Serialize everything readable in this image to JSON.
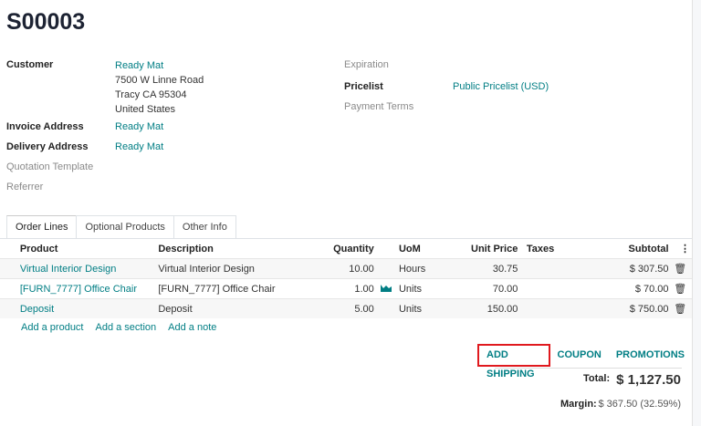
{
  "title": "S00003",
  "customer": {
    "label": "Customer",
    "name": "Ready Mat",
    "address": [
      "7500 W Linne Road",
      "Tracy CA 95304",
      "United States"
    ]
  },
  "invoice_address": {
    "label": "Invoice Address",
    "value": "Ready Mat"
  },
  "delivery_address": {
    "label": "Delivery Address",
    "value": "Ready Mat"
  },
  "quotation_template": {
    "label": "Quotation Template"
  },
  "referrer": {
    "label": "Referrer"
  },
  "expiration": {
    "label": "Expiration"
  },
  "pricelist": {
    "label": "Pricelist",
    "value": "Public Pricelist (USD)"
  },
  "payment_terms": {
    "label": "Payment Terms"
  },
  "tabs": [
    "Order Lines",
    "Optional Products",
    "Other Info"
  ],
  "columns": [
    "Product",
    "Description",
    "Quantity",
    "UoM",
    "Unit Price",
    "Taxes",
    "Subtotal"
  ],
  "rows": [
    {
      "product": "Virtual Interior Design",
      "description": "Virtual Interior Design",
      "quantity": "10.00",
      "uom": "Hours",
      "unit_price": "30.75",
      "taxes": "",
      "subtotal": "$ 307.50"
    },
    {
      "product": "[FURN_7777] Office Chair",
      "description": "[FURN_7777] Office Chair",
      "quantity": "1.00",
      "uom": "Units",
      "unit_price": "70.00",
      "taxes": "",
      "subtotal": "$ 70.00"
    },
    {
      "product": "Deposit",
      "description": "Deposit",
      "quantity": "5.00",
      "uom": "Units",
      "unit_price": "150.00",
      "taxes": "",
      "subtotal": "$ 750.00"
    }
  ],
  "add_links": [
    "Add a product",
    "Add a section",
    "Add a note"
  ],
  "buttons": {
    "add_shipping": "ADD SHIPPING",
    "coupon": "COUPON",
    "promotions": "PROMOTIONS"
  },
  "totals": {
    "total_label": "Total:",
    "total": "$ 1,127.50",
    "margin_label": "Margin:",
    "margin": "$ 367.50 (32.59%)"
  },
  "colors": {
    "link": "#017e84",
    "highlight": "#e0191e"
  }
}
